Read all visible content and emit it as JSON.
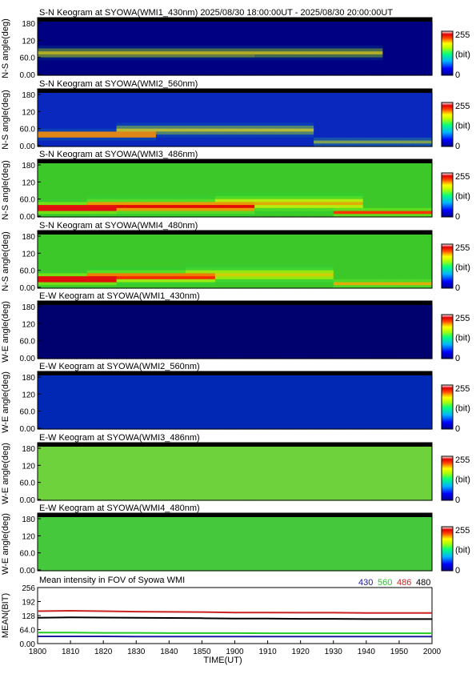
{
  "chart_data": {
    "type": "heatmap",
    "title": "S-N Keogram at SYOWA(WMI1_430nm)    2025/08/30 18:00:00UT - 2025/08/30 20:00:00UT",
    "xlabel": "TIME(UT)",
    "xticks": [
      "1800",
      "1810",
      "1820",
      "1830",
      "1840",
      "1850",
      "1900",
      "1910",
      "1920",
      "1930",
      "1940",
      "1950",
      "2000"
    ],
    "xlim": [
      0,
      120
    ],
    "yticks": [
      "0.00",
      "60.0",
      "120",
      "180"
    ],
    "ylim": [
      0,
      180
    ],
    "colorbar": {
      "max_label": "255",
      "unit_label": "(bit)",
      "min_label": "0"
    },
    "panels": [
      {
        "title": "S-N Keogram at SYOWA(WMI1_430nm)    2025/08/30 18:00:00UT - 2025/08/30 20:00:00UT",
        "ylabel": "N-S angle(deg)",
        "base": [
          0,
          0,
          130
        ],
        "peak": 70,
        "glow": [
          [
            0,
            60,
            70,
            10,
            0.45
          ],
          [
            0,
            100,
            75,
            14,
            0.5
          ]
        ]
      },
      {
        "title": "S-N Keogram at SYOWA(WMI2_560nm)",
        "ylabel": "N-S angle(deg)",
        "base": [
          10,
          40,
          190
        ],
        "peak": 110,
        "glow": [
          [
            0,
            30,
            40,
            10,
            0.8
          ],
          [
            30,
            80,
            55,
            14,
            0.5
          ],
          [
            90,
            120,
            15,
            10,
            0.4
          ]
        ]
      },
      {
        "title": "S-N Keogram at SYOWA(WMI3_486nm)",
        "ylabel": "N-S angle(deg)",
        "base": [
          60,
          200,
          40
        ],
        "peak": 255,
        "glow": [
          [
            0,
            20,
            30,
            14,
            1.0
          ],
          [
            20,
            60,
            35,
            18,
            0.85
          ],
          [
            60,
            95,
            45,
            20,
            0.6
          ],
          [
            95,
            120,
            15,
            10,
            0.75
          ]
        ]
      },
      {
        "title": "S-N Keogram at SYOWA(WMI4_480nm)",
        "ylabel": "N-S angle(deg)",
        "base": [
          60,
          200,
          40
        ],
        "peak": 255,
        "glow": [
          [
            0,
            20,
            30,
            14,
            1.0
          ],
          [
            20,
            50,
            38,
            16,
            0.8
          ],
          [
            50,
            85,
            45,
            18,
            0.55
          ],
          [
            95,
            120,
            15,
            10,
            0.6
          ]
        ]
      },
      {
        "title": "E-W Keogram at SYOWA(WMI1_430nm)",
        "ylabel": "W-E angle(deg)",
        "base": [
          0,
          0,
          110
        ],
        "peak": 40,
        "glow": []
      },
      {
        "title": "E-W Keogram at SYOWA(WMI2_560nm)",
        "ylabel": "W-E angle(deg)",
        "base": [
          0,
          40,
          180
        ],
        "peak": 70,
        "glow": []
      },
      {
        "title": "E-W Keogram at SYOWA(WMI3_486nm)",
        "ylabel": "W-E angle(deg)",
        "base": [
          110,
          210,
          60
        ],
        "peak": 160,
        "glow": []
      },
      {
        "title": "E-W Keogram at SYOWA(WMI4_480nm)",
        "ylabel": "W-E angle(deg)",
        "base": [
          70,
          200,
          60
        ],
        "peak": 150,
        "glow": []
      }
    ],
    "mean": {
      "title": "Mean intensity in FOV of Syowa WMI",
      "ylabel": "MEAN(BIT)",
      "yticks": [
        "0.00",
        "64.0",
        "128",
        "192",
        "256"
      ],
      "ylim": [
        0,
        256
      ],
      "legend": [
        {
          "name": "430",
          "color": "#1a1aa0"
        },
        {
          "name": "560",
          "color": "#22cc22"
        },
        {
          "name": "486",
          "color": "#cc2222"
        },
        {
          "name": "480",
          "color": "#000000"
        }
      ],
      "x": [
        0,
        10,
        20,
        30,
        40,
        50,
        60,
        70,
        80,
        90,
        100,
        110,
        120
      ],
      "series": [
        {
          "name": "486",
          "color": "#cc2222",
          "values": [
            148,
            150,
            148,
            146,
            145,
            144,
            142,
            142,
            141,
            141,
            140,
            140,
            140
          ]
        },
        {
          "name": "480",
          "color": "#000000",
          "values": [
            118,
            120,
            119,
            118,
            117,
            116,
            114,
            114,
            113,
            113,
            112,
            112,
            112
          ]
        },
        {
          "name": "560",
          "color": "#22cc22",
          "values": [
            50,
            50,
            49,
            49,
            48,
            48,
            48,
            47,
            47,
            47,
            47,
            47,
            47
          ]
        },
        {
          "name": "430",
          "color": "#1a1aa0",
          "values": [
            33,
            33,
            33,
            32,
            32,
            32,
            32,
            32,
            32,
            32,
            32,
            32,
            32
          ]
        }
      ]
    }
  }
}
